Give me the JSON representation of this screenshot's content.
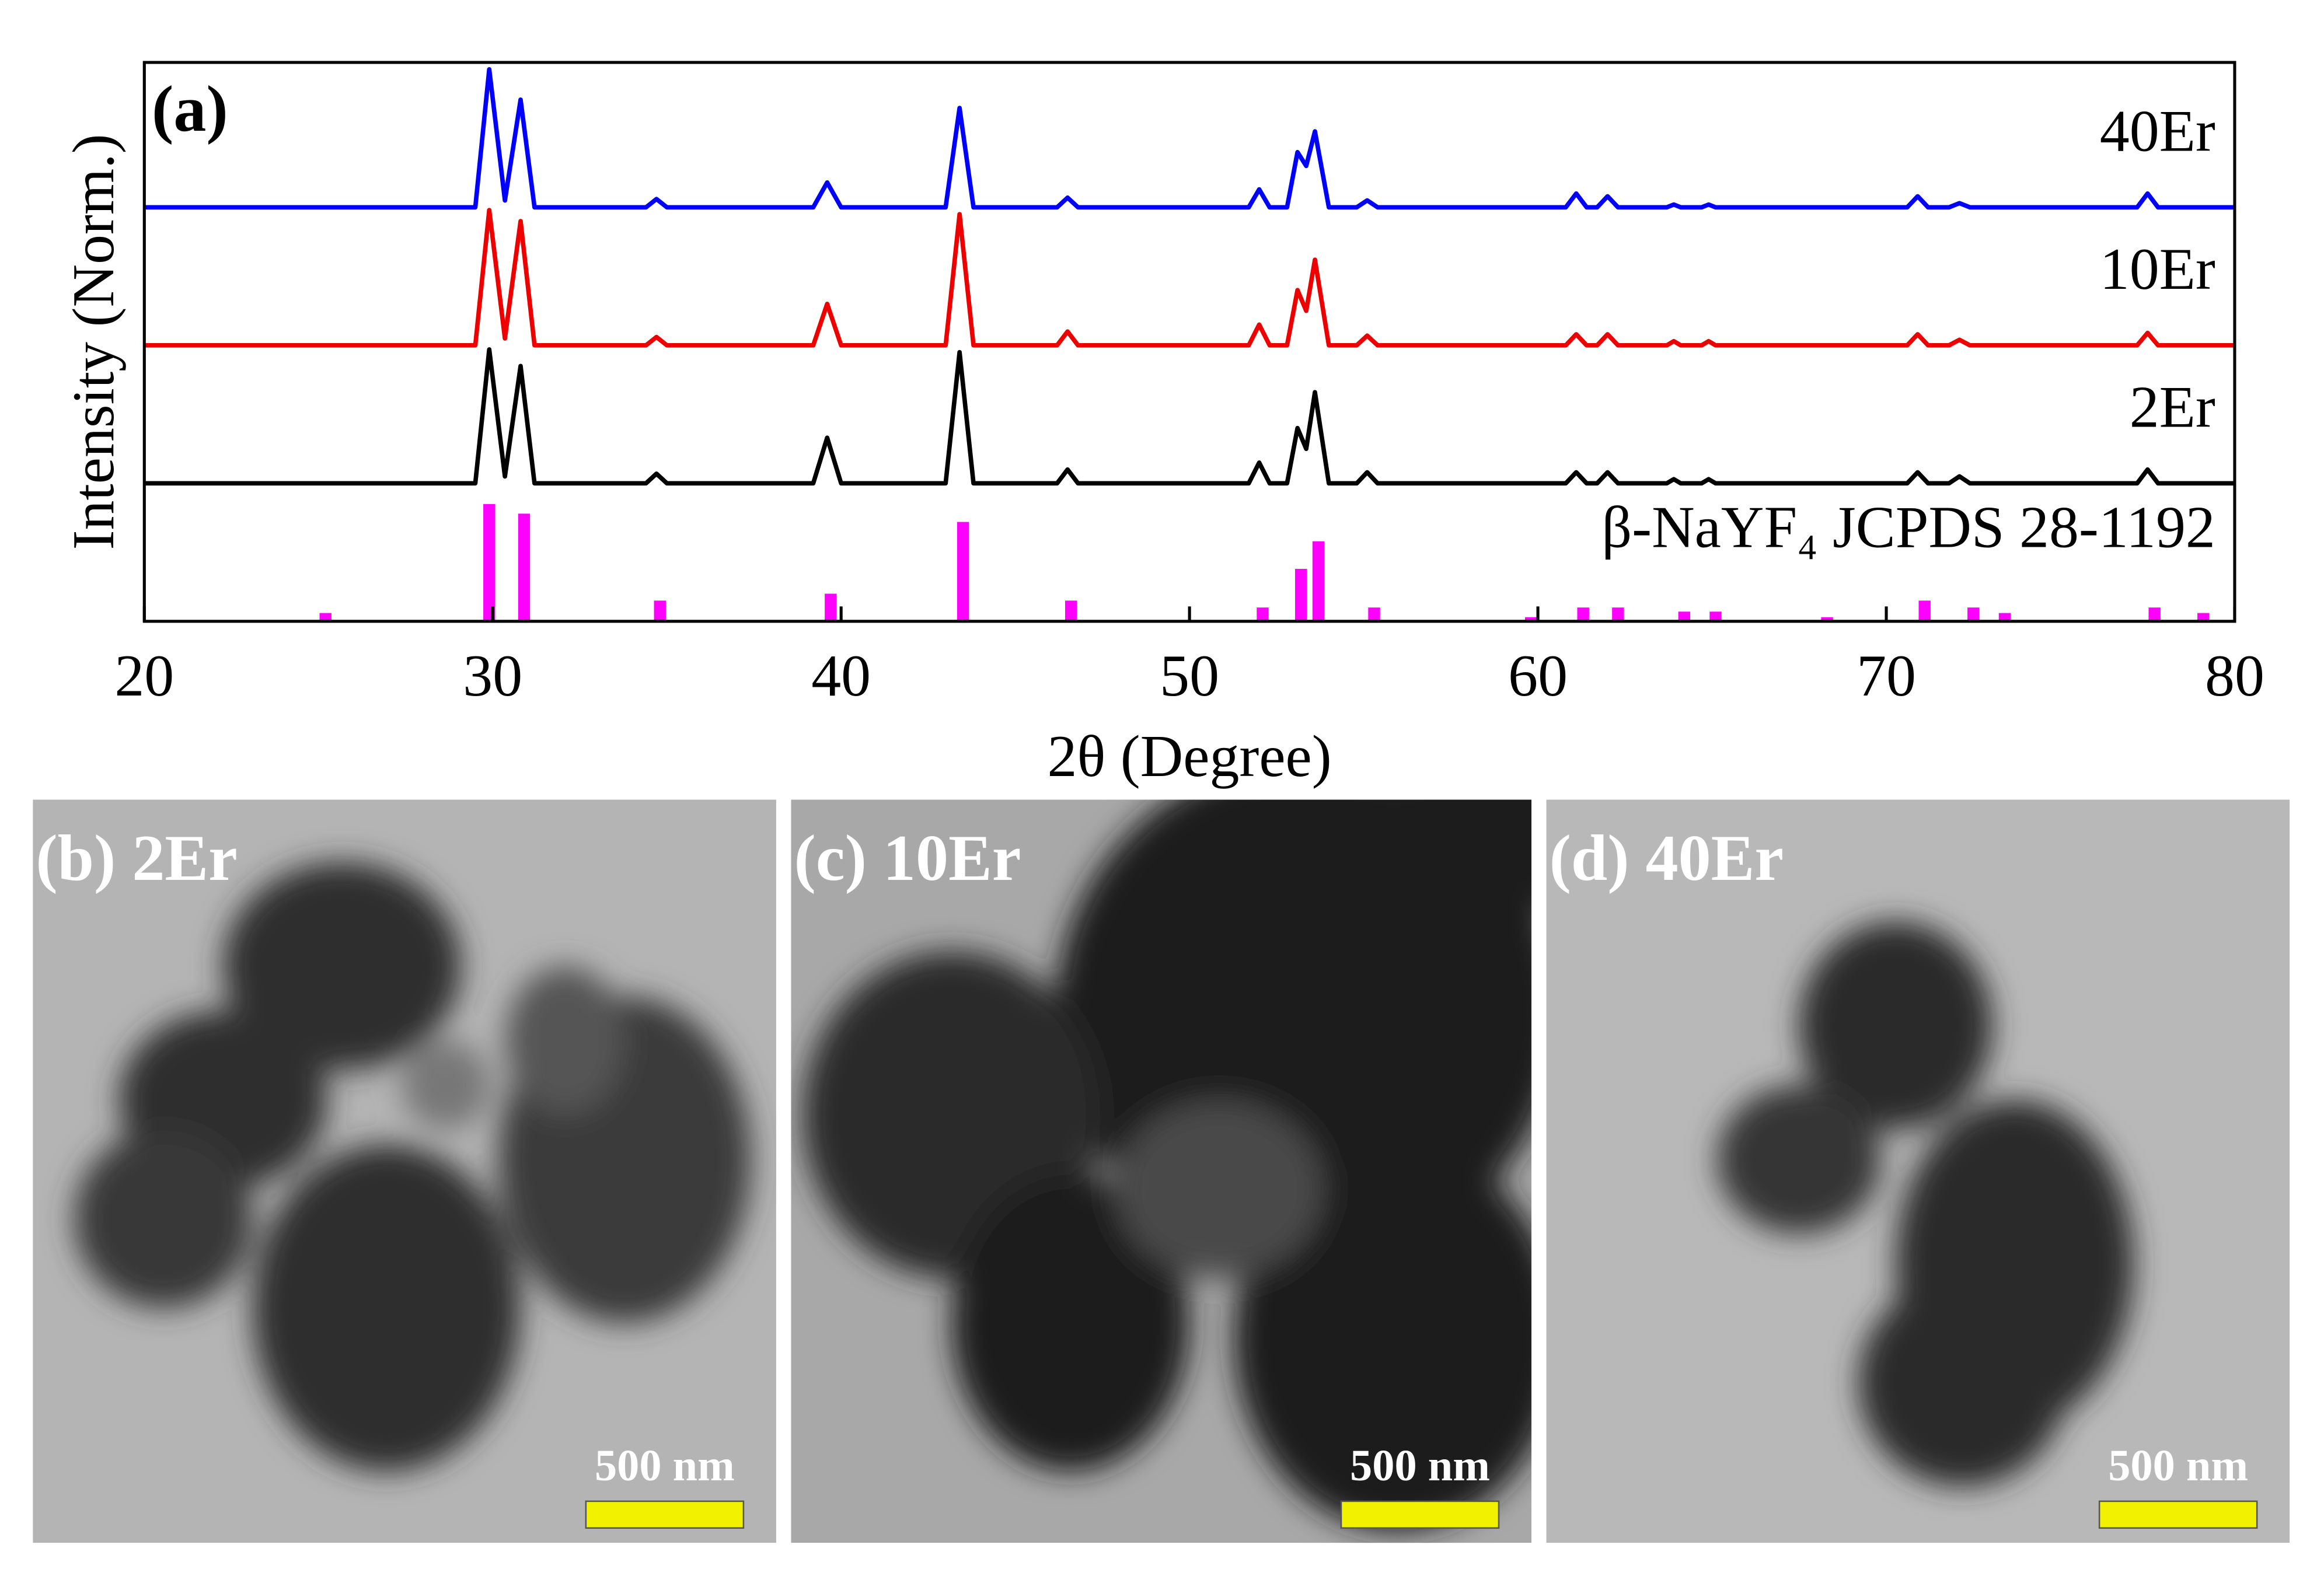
{
  "chart_data": [
    {
      "type": "line",
      "panel_label": "(a)",
      "x_label": "2θ (Degree)",
      "y_label": "Intensity (Norm.)",
      "xlim": [
        20,
        80
      ],
      "xticks": [
        20,
        30,
        40,
        50,
        60,
        70,
        80
      ],
      "ylim": [
        0,
        4.05
      ],
      "x": [
        20,
        29.5,
        29.9,
        30.35,
        30.8,
        31.2,
        34.4,
        34.7,
        35.0,
        39.2,
        39.6,
        40.0,
        43.0,
        43.4,
        43.8,
        46.2,
        46.5,
        46.8,
        51.7,
        52.0,
        52.3,
        52.8,
        53.1,
        53.35,
        53.6,
        54.0,
        54.8,
        55.1,
        55.4,
        60.8,
        61.1,
        61.4,
        61.7,
        62.0,
        62.3,
        63.7,
        63.9,
        64.1,
        64.7,
        64.9,
        65.1,
        70.6,
        70.9,
        71.2,
        71.8,
        72.1,
        72.4,
        77.2,
        77.5,
        77.8,
        80
      ],
      "series": [
        {
          "name": "40Er",
          "color": "#0000ff",
          "values": [
            3,
            3,
            4.0,
            3.05,
            3.78,
            3,
            3,
            3.06,
            3,
            3,
            3.18,
            3,
            3,
            3.72,
            3,
            3,
            3.07,
            3,
            3,
            3.13,
            3,
            3,
            3.4,
            3.3,
            3.55,
            3,
            3,
            3.05,
            3,
            3,
            3.1,
            3,
            3,
            3.08,
            3,
            3,
            3.02,
            3,
            3,
            3.02,
            3,
            3,
            3.08,
            3,
            3,
            3.03,
            3,
            3,
            3.1,
            3,
            3
          ]
        },
        {
          "name": "10Er",
          "color": "#ee0000",
          "values": [
            2,
            2,
            2.98,
            2.05,
            2.9,
            2,
            2,
            2.06,
            2,
            2,
            2.3,
            2,
            2,
            2.95,
            2,
            2,
            2.1,
            2,
            2,
            2.15,
            2,
            2,
            2.4,
            2.25,
            2.62,
            2,
            2,
            2.07,
            2,
            2,
            2.08,
            2,
            2,
            2.08,
            2,
            2,
            2.03,
            2,
            2,
            2.03,
            2,
            2,
            2.08,
            2,
            2,
            2.04,
            2,
            2,
            2.09,
            2,
            2
          ]
        },
        {
          "name": "2Er",
          "color": "#000000",
          "values": [
            1,
            1,
            1.97,
            1.05,
            1.85,
            1,
            1,
            1.07,
            1,
            1,
            1.33,
            1,
            1,
            1.95,
            1,
            1,
            1.1,
            1,
            1,
            1.15,
            1,
            1,
            1.4,
            1.25,
            1.66,
            1,
            1,
            1.08,
            1,
            1,
            1.08,
            1,
            1,
            1.08,
            1,
            1,
            1.03,
            1,
            1,
            1.03,
            1,
            1,
            1.08,
            1,
            1,
            1.05,
            1,
            1,
            1.1,
            1,
            1
          ]
        }
      ]
    },
    {
      "type": "bar",
      "name": "β-NaYF₄ JCPDS 28-1192",
      "color": "#ff00ff",
      "x": [
        25.2,
        29.9,
        30.9,
        34.8,
        39.7,
        43.5,
        46.6,
        52.1,
        53.2,
        53.7,
        55.3,
        59.8,
        61.3,
        62.3,
        64.2,
        65.1,
        68.3,
        71.1,
        72.5,
        73.4,
        77.7,
        79.1
      ],
      "values": [
        0.06,
        0.85,
        0.78,
        0.15,
        0.2,
        0.72,
        0.15,
        0.1,
        0.38,
        0.58,
        0.1,
        0.03,
        0.1,
        0.1,
        0.07,
        0.07,
        0.03,
        0.15,
        0.1,
        0.06,
        0.1,
        0.06
      ]
    }
  ],
  "images": [
    {
      "label": "(b) 2Er",
      "scale_bar": "500 nm"
    },
    {
      "label": "(c) 10Er",
      "scale_bar": "500 nm"
    },
    {
      "label": "(d) 40Er",
      "scale_bar": "500 nm"
    }
  ]
}
